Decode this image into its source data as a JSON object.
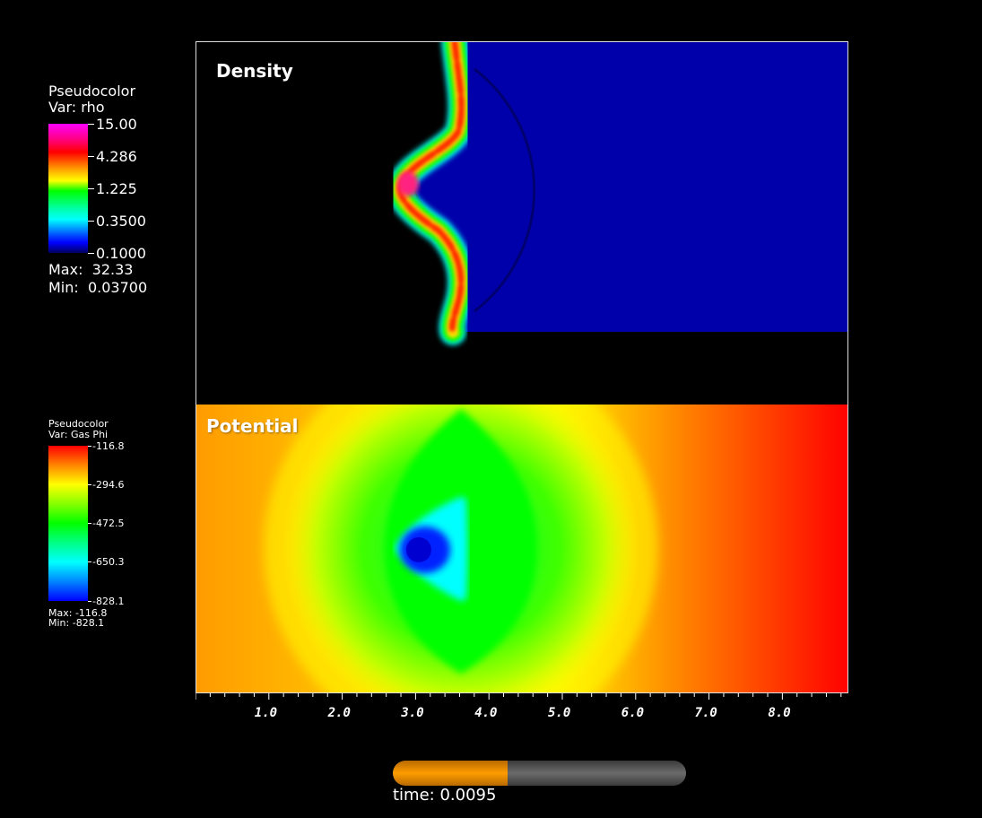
{
  "density_legend": {
    "title_line1": "Pseudocolor",
    "title_line2": "Var: rho",
    "ticks": [
      "15.00",
      "4.286",
      "1.225",
      "0.3500",
      "0.1000"
    ],
    "max_label": "Max:  32.33",
    "min_label": "Min:  0.03700",
    "colormap": [
      "#ff00ff",
      "#ff0000",
      "#ffff00",
      "#00ff00",
      "#00ffff",
      "#0000ff",
      "#000000"
    ]
  },
  "potential_legend": {
    "title_line1": "Pseudocolor",
    "title_line2": "Var: Gas Phi",
    "ticks": [
      "-116.8",
      "-294.6",
      "-472.5",
      "-650.3",
      "-828.1"
    ],
    "max_label": "Max: -116.8",
    "min_label": "Min: -828.1",
    "colormap": [
      "#ff0000",
      "#ffff00",
      "#00ff00",
      "#00ffff",
      "#0000ff"
    ]
  },
  "panels": {
    "density_label": "Density",
    "potential_label": "Potential"
  },
  "x_axis": {
    "tick_labels": [
      "1.0",
      "2.0",
      "3.0",
      "4.0",
      "5.0",
      "6.0",
      "7.0",
      "8.0"
    ],
    "range": [
      0,
      8.9
    ]
  },
  "time_slider": {
    "label": "time: 0.0095",
    "progress": 0.39,
    "fill_color": "#ff9c00",
    "track_color": "#555555"
  }
}
